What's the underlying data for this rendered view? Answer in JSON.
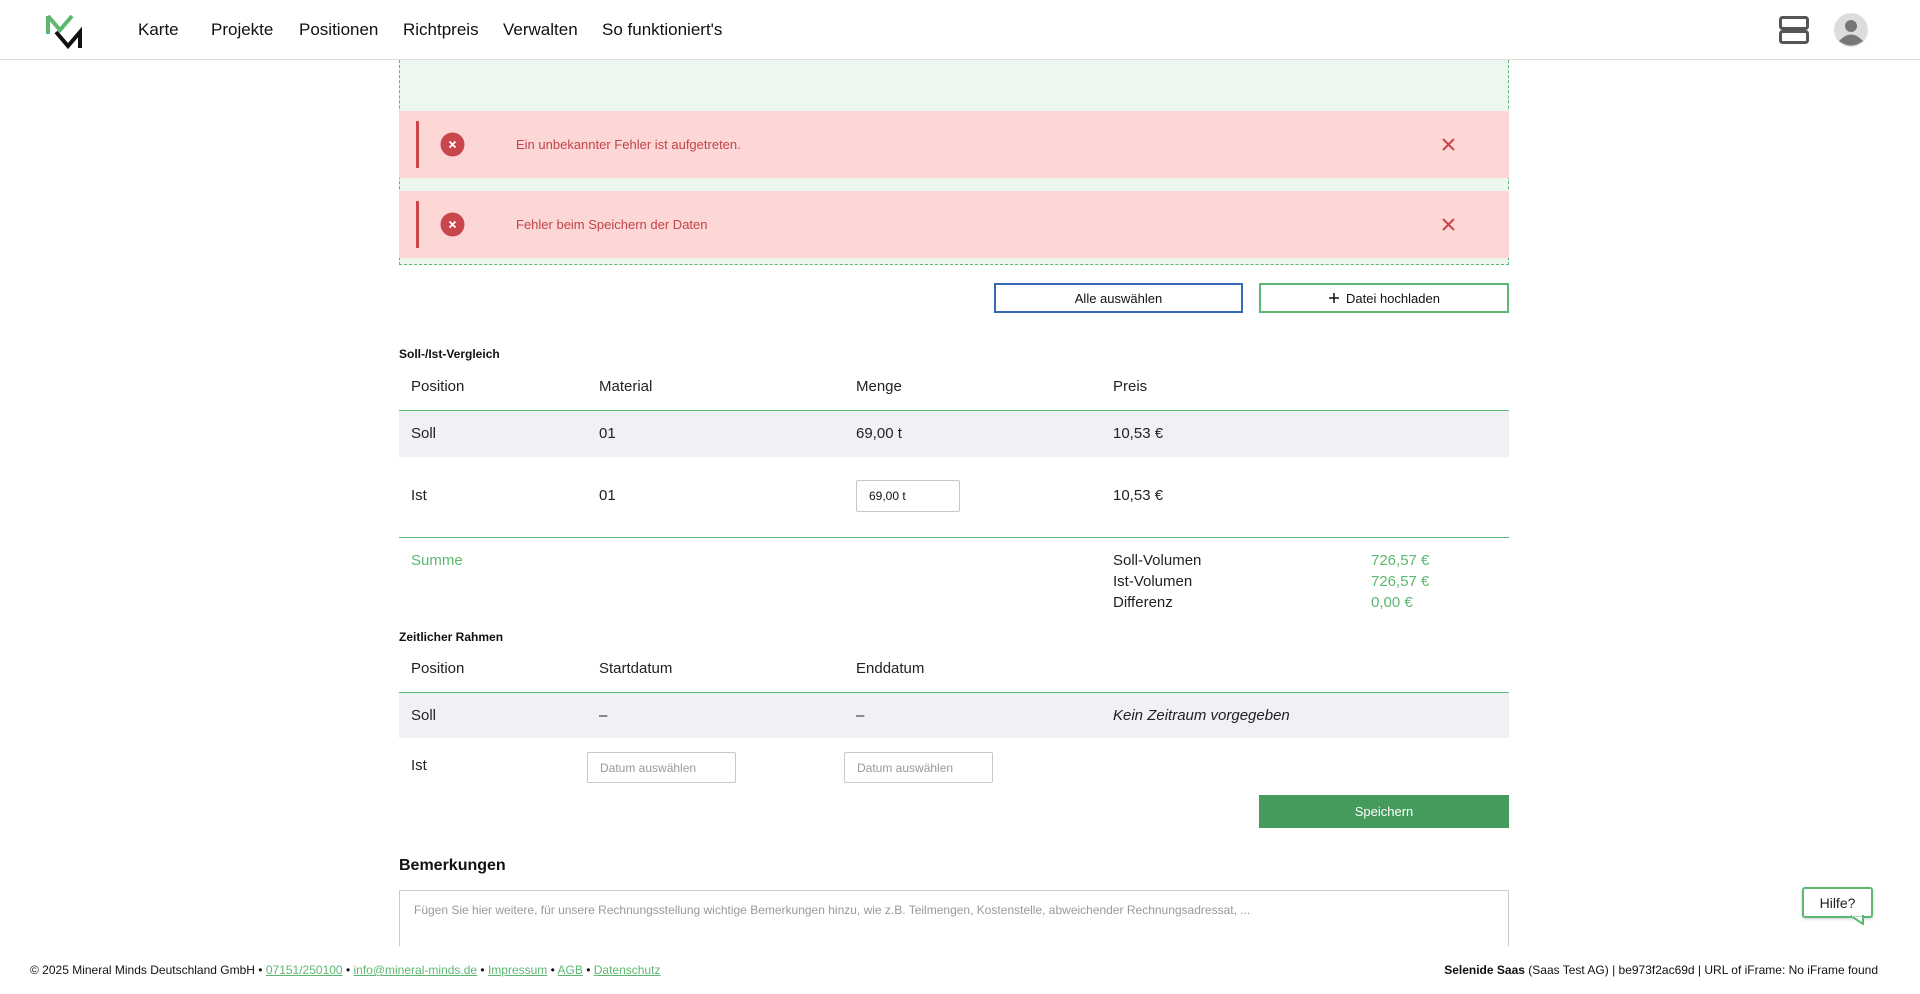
{
  "header": {
    "nav": [
      "Karte",
      "Projekte",
      "Positionen",
      "Richtpreis",
      "Verwalten",
      "So funktioniert's"
    ]
  },
  "alerts": [
    "Ein unbekannter Fehler ist aufgetreten.",
    "Fehler beim Speichern der Daten"
  ],
  "buttons": {
    "select_all": "Alle auswählen",
    "upload": "Datei hochladen"
  },
  "comparison": {
    "title": "Soll-/Ist-Vergleich",
    "headers": [
      "Position",
      "Material",
      "Menge",
      "Preis"
    ],
    "rows": [
      [
        "Soll",
        "01",
        "69,00 t",
        "10,53 €"
      ],
      [
        "Ist",
        "01",
        "69,00 t",
        "10,53 €"
      ]
    ],
    "summary": {
      "label": "Summe",
      "items": [
        [
          "Soll-Volumen",
          "726,57 €"
        ],
        [
          "Ist-Volumen",
          "726,57 €"
        ],
        [
          "Differenz",
          "0,00 €"
        ]
      ]
    }
  },
  "timeframe": {
    "title": "Zeitlicher Rahmen",
    "headers": [
      "Position",
      "Startdatum",
      "Enddatum"
    ],
    "rows": [
      [
        "Soll",
        "–",
        "–",
        "Kein Zeitraum vorgegeben"
      ],
      [
        "Ist",
        "Datum auswählen",
        "Datum auswählen"
      ]
    ]
  },
  "save": "Speichern",
  "remarks": {
    "title": "Bemerkungen",
    "placeholder": "Fügen Sie hier weitere, für unsere Rechnungsstellung wichtige Bemerkungen hinzu, wie z.B. Teilmengen, Kostenstelle, abweichender Rechnungsadressat, ..."
  },
  "help": "Hilfe?",
  "footer": {
    "copyright": "© 2025 Mineral Minds Deutschland GmbH",
    "separator": "•",
    "links": [
      "07151/250100",
      "info@mineral-minds.de",
      "Impressum",
      "AGB",
      "Datenschutz"
    ],
    "right_bold": "Selenide Saas",
    "right_text": "(Saas Test AG) | be973f2ac69d | URL of iFrame: No iFrame found"
  }
}
